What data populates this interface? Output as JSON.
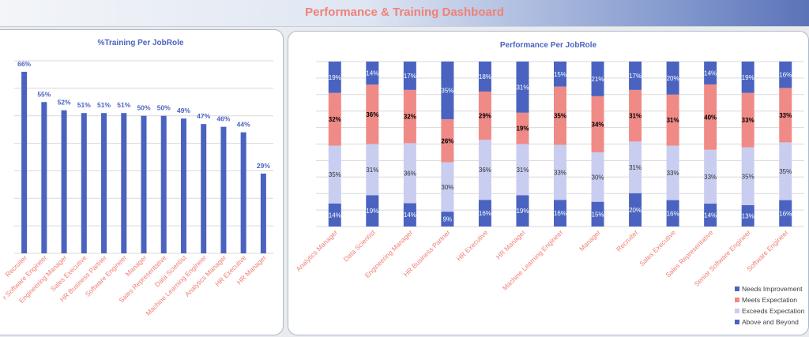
{
  "header": {
    "title": "Performance  & Training Dashboard"
  },
  "colors": {
    "bar": "#4a63c0",
    "needs_improvement": "#4a63c0",
    "meets_expectation": "#f08a86",
    "exceeds_expectation": "#c9cdf0",
    "above_and_beyond": "#4a63c0",
    "axis_text": "#f08178",
    "grid": "#d9d9d9"
  },
  "chart_data": [
    {
      "type": "bar",
      "title": "%Training Per JobRole",
      "categories": [
        "Recruiter",
        "Senior Software Engineer",
        "Engineering Manager",
        "Sales Executive",
        "HR Business Partner",
        "Software Engineer",
        "Manager",
        "Sales Representative",
        "Data Scientist",
        "Machine Learning Engineer",
        "Analytics Manager",
        "HR Executive",
        "HR Manager"
      ],
      "tick_labels": [
        "Recruiter",
        "r Software Engineer",
        "Engineering Manager",
        "Sales Executive",
        "HR Business Partner",
        "Software Engineer",
        "Manager",
        "Sales Representative",
        "Data Scientist",
        "Machine Learning Engineer",
        "Analytics Manager",
        "HR Executive",
        "HR Manager"
      ],
      "values": [
        66,
        55,
        52,
        51,
        51,
        51,
        50,
        50,
        49,
        47,
        46,
        44,
        29
      ],
      "data_labels": [
        "66%",
        "55%",
        "52%",
        "51%",
        "51%",
        "51%",
        "50%",
        "50%",
        "49%",
        "47%",
        "46%",
        "44%",
        "29%"
      ],
      "ylim": [
        0,
        70
      ],
      "grid": true
    },
    {
      "type": "bar",
      "stacked": true,
      "title": "Performance Per JobRole",
      "categories": [
        "Analytics Manager",
        "Data Scientist",
        "Engineering Manager",
        "HR Business Partner",
        "HR Executive",
        "HR Manager",
        "Machine Learning Engineer",
        "Manager",
        "Recruiter",
        "Sales Executive",
        "Sales Representative",
        "Senior Software Engineer",
        "Software Engineer"
      ],
      "series": [
        {
          "name": "Above and Beyond",
          "values": [
            14,
            19,
            14,
            9,
            16,
            19,
            16,
            15,
            20,
            16,
            14,
            13,
            16
          ],
          "labels": [
            "14%",
            "19%",
            "14%",
            "9%",
            "16%",
            "19%",
            "16%",
            "15%",
            "20%",
            "16%",
            "14%",
            "13%",
            "16%"
          ]
        },
        {
          "name": "Exceeds Expectation",
          "values": [
            35,
            31,
            36,
            30,
            36,
            31,
            33,
            30,
            31,
            33,
            33,
            35,
            35
          ],
          "labels": [
            "35%",
            "31%",
            "36%",
            "30%",
            "36%",
            "31%",
            "33%",
            "30%",
            "31%",
            "33%",
            "33%",
            "35%",
            "35%"
          ]
        },
        {
          "name": "Meets Expectation",
          "values": [
            32,
            36,
            32,
            26,
            29,
            19,
            35,
            34,
            31,
            31,
            40,
            33,
            33
          ],
          "labels": [
            "32%",
            "36%",
            "32%",
            "26%",
            "29%",
            "19%",
            "35%",
            "34%",
            "31%",
            "31%",
            "40%",
            "33%",
            "33%"
          ]
        },
        {
          "name": "Needs Improvement",
          "values": [
            19,
            14,
            17,
            35,
            18,
            31,
            15,
            21,
            17,
            20,
            14,
            19,
            16
          ],
          "labels": [
            "19%",
            "14%",
            "17%",
            "35%",
            "18%",
            "31%",
            "15%",
            "21%",
            "17%",
            "20%",
            "14%",
            "19%",
            "16%"
          ]
        }
      ],
      "legend": {
        "position": "bottom-right",
        "entries": [
          "Needs Improvement",
          "Meets Expectation",
          "Exceeds Expectation",
          "Above and Beyond"
        ]
      },
      "ylim": [
        0,
        100
      ],
      "grid": true
    }
  ]
}
